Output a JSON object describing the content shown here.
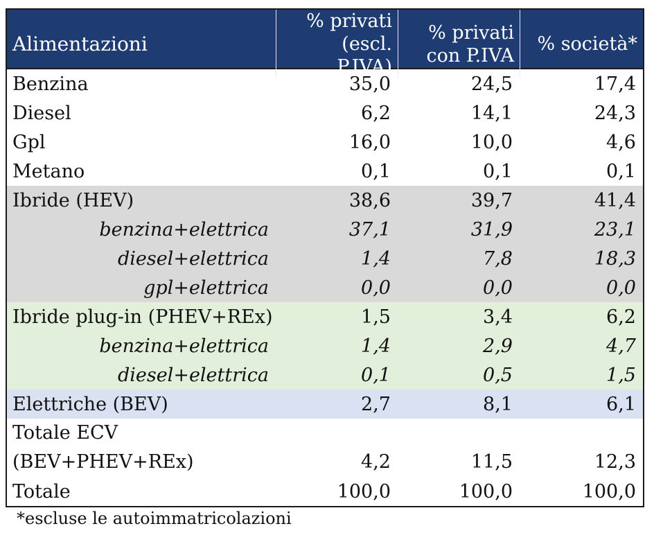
{
  "header": {
    "col0": "Alimentazioni",
    "col1_line1": "% privati",
    "col1_line2": "(escl. P.IVA)",
    "col2_line1": "% privati",
    "col2_line2": "con P.IVA",
    "col3": "% società*"
  },
  "rows": [
    {
      "label": "Benzina",
      "v1": "35,0",
      "v2": "24,5",
      "v3": "17,4"
    },
    {
      "label": "Diesel",
      "v1": "6,2",
      "v2": "14,1",
      "v3": "24,3"
    },
    {
      "label": "Gpl",
      "v1": "16,0",
      "v2": "10,0",
      "v3": "4,6"
    },
    {
      "label": "Metano",
      "v1": "0,1",
      "v2": "0,1",
      "v3": "0,1"
    },
    {
      "label": "Ibride (HEV)",
      "v1": "38,6",
      "v2": "39,7",
      "v3": "41,4"
    },
    {
      "label": "benzina+elettrica",
      "v1": "37,1",
      "v2": "31,9",
      "v3": "23,1"
    },
    {
      "label": "diesel+elettrica",
      "v1": "1,4",
      "v2": "7,8",
      "v3": "18,3"
    },
    {
      "label": "gpl+elettrica",
      "v1": "0,0",
      "v2": "0,0",
      "v3": "0,0"
    },
    {
      "label": "Ibride plug-in (PHEV+REx)",
      "v1": "1,5",
      "v2": "3,4",
      "v3": "6,2"
    },
    {
      "label": "benzina+elettrica",
      "v1": "1,4",
      "v2": "2,9",
      "v3": "4,7"
    },
    {
      "label": "diesel+elettrica",
      "v1": "0,1",
      "v2": "0,5",
      "v3": "1,5"
    },
    {
      "label": "Elettriche (BEV)",
      "v1": "2,7",
      "v2": "8,1",
      "v3": "6,1"
    },
    {
      "label_line1": "Totale ECV",
      "label_line2": "(BEV+PHEV+REx)",
      "v1": "4,2",
      "v2": "11,5",
      "v3": "12,3"
    },
    {
      "label": "Totale",
      "v1": "100,0",
      "v2": "100,0",
      "v3": "100,0"
    }
  ],
  "footnote": "*escluse le autoimmatricolazioni",
  "colors": {
    "header_bg": "#1f3c72",
    "hybrid_bg": "#d9d9d9",
    "plugin_bg": "#e2efda",
    "bev_bg": "#d9e1f2"
  }
}
